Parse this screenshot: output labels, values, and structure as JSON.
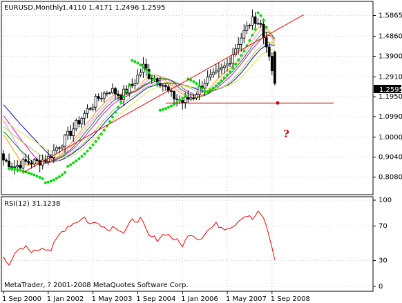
{
  "chart_data": [
    {
      "type": "candlestick",
      "title": "EURUSD,Monthly",
      "ohlc_readout": "1.4110 1.4171 1.2496 1.2595",
      "y_ticks": [
        "1.5865",
        "1.4860",
        "1.3900",
        "1.2910",
        "1.1950",
        "1.0990",
        "1.0000",
        "0.9040",
        "0.8080"
      ],
      "current_price": "1.2595",
      "ylim": [
        0.79,
        1.63
      ],
      "annotation": "?",
      "colors": {
        "bull_body": "#ffffff",
        "bear_body": "#000000",
        "sar": "#00dd00",
        "trend_line": "#ee0000",
        "level_line": "#cc0000",
        "ma_blue": "#0000cc",
        "ma_green": "#008800",
        "ma_magenta": "#dd00dd",
        "ma_pink": "#ff88ff",
        "ma_yellow": "#ccee44",
        "ma_olive": "#99cc44",
        "ma_orange": "#ff9900"
      },
      "horizontal_level": {
        "value": 1.165,
        "end_index": 97
      },
      "trend_line": {
        "start": [
          7,
          0.83
        ],
        "end": [
          90,
          1.47
        ]
      }
    },
    {
      "type": "line",
      "title": "RSI(12) 31.1238",
      "y_ticks": [
        "100",
        "70",
        "30",
        "0"
      ],
      "ylim": [
        0,
        100
      ],
      "color": "#ee0000"
    }
  ],
  "x_ticks": [
    "1 Sep 2000",
    "1 Jan 2002",
    "1 May 2003",
    "1 Sep 2004",
    "1 Jan 2006",
    "1 May 2007",
    "1 Sep 2008"
  ],
  "copyright": "MetaTrader, ? 2001-2008 MetaQuotes Software Corp."
}
